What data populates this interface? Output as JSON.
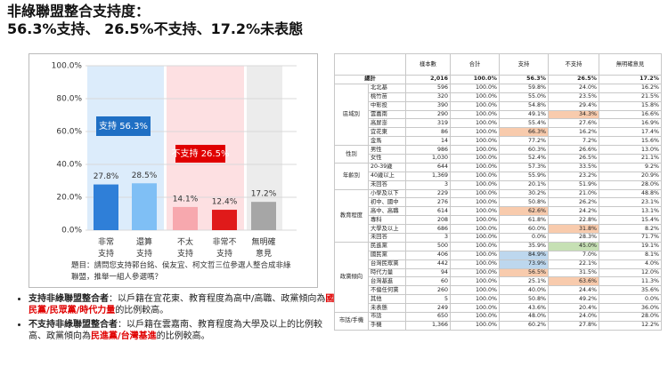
{
  "header": {
    "title": "非綠聯盟整合支持度：",
    "subtitle": "56.3%支持、 26.5%不支持、17.2%未表態"
  },
  "chart_data": {
    "type": "bar",
    "categories": [
      "非常支持",
      "還算支持",
      "不太支持",
      "非常不支持",
      "無明確意見"
    ],
    "values": [
      27.8,
      28.5,
      14.1,
      12.4,
      17.2
    ],
    "value_labels": [
      "27.8%",
      "28.5%",
      "14.1%",
      "12.4%",
      "17.2%"
    ],
    "colors": [
      "#2f7fd8",
      "#7fbff5",
      "#f7a8ae",
      "#e01a1a",
      "#a6a6a6"
    ],
    "ylim": [
      0,
      100
    ],
    "yticks": [
      {
        "value": 0,
        "label": "0.0%"
      },
      {
        "value": 20,
        "label": "20.0%"
      },
      {
        "value": 40,
        "label": "40.0%"
      },
      {
        "value": 60,
        "label": "60.0%"
      },
      {
        "value": 80,
        "label": "80.0%"
      },
      {
        "value": 100,
        "label": "100.0%"
      }
    ],
    "grid": true,
    "annotations": [
      {
        "text": "支持 56.3%",
        "color": "#1f6fc4"
      },
      {
        "text": "不支持 26.5%",
        "color": "#e00000"
      }
    ],
    "note": "題目：請問您支持郭台銘、侯友宜、柯文哲三位參選人整合成非綠聯盟，推舉一組人參選嗎？"
  },
  "bullets": [
    {
      "lead": "支持非綠聯盟整合者",
      "text": "：以戶籍在宜花東、教育程度為高中/高職、政黨傾向為",
      "em": "國民黨/民眾黨/時代力量",
      "tail": "的比例較高。"
    },
    {
      "lead": "不支持非綠聯盟整合者",
      "text": "：以戶籍在雲嘉南、教育程度為大學及以上的比例較高、政黨傾向為",
      "em": "民進黨/台灣基進",
      "tail": "的比例較高。"
    }
  ],
  "table": {
    "headers": [
      "樣本數",
      "合計",
      "支持",
      "不支持",
      "無明確意見"
    ],
    "total": {
      "label": "總計",
      "cells": [
        "2,016",
        "100.0%",
        "56.3%",
        "26.5%",
        "17.2%"
      ]
    },
    "groups": [
      {
        "name": "區域別",
        "rows": [
          {
            "label": "北北基",
            "cells": [
              "596",
              "100.0%",
              "59.8%",
              "24.0%",
              "16.2%"
            ]
          },
          {
            "label": "桃竹苗",
            "cells": [
              "320",
              "100.0%",
              "55.0%",
              "23.5%",
              "21.5%"
            ]
          },
          {
            "label": "中彰投",
            "cells": [
              "390",
              "100.0%",
              "54.8%",
              "29.4%",
              "15.8%"
            ]
          },
          {
            "label": "雲嘉南",
            "cells": [
              "290",
              "100.0%",
              "49.1%",
              "34.3%",
              "16.6%"
            ],
            "highlight": {
              "col": 3,
              "color": "#f8cbad"
            }
          },
          {
            "label": "高屏澎",
            "cells": [
              "319",
              "100.0%",
              "55.4%",
              "27.6%",
              "16.9%"
            ]
          },
          {
            "label": "宜花東",
            "cells": [
              "86",
              "100.0%",
              "66.3%",
              "16.2%",
              "17.4%"
            ],
            "highlight": {
              "col": 2,
              "color": "#f8cbad"
            }
          },
          {
            "label": "金馬",
            "cells": [
              "14",
              "100.0%",
              "77.2%",
              "7.2%",
              "15.6%"
            ]
          }
        ]
      },
      {
        "name": "性別",
        "rows": [
          {
            "label": "男性",
            "cells": [
              "986",
              "100.0%",
              "60.3%",
              "26.6%",
              "13.0%"
            ]
          },
          {
            "label": "女性",
            "cells": [
              "1,030",
              "100.0%",
              "52.4%",
              "26.5%",
              "21.1%"
            ]
          }
        ]
      },
      {
        "name": "年齡別",
        "rows": [
          {
            "label": "20-39歲",
            "cells": [
              "644",
              "100.0%",
              "57.3%",
              "33.5%",
              "9.2%"
            ]
          },
          {
            "label": "40歲以上",
            "cells": [
              "1,369",
              "100.0%",
              "55.9%",
              "23.2%",
              "20.9%"
            ]
          },
          {
            "label": "未回答",
            "cells": [
              "3",
              "100.0%",
              "20.1%",
              "51.9%",
              "28.0%"
            ]
          }
        ]
      },
      {
        "name": "教育程度",
        "rows": [
          {
            "label": "小學及以下",
            "cells": [
              "229",
              "100.0%",
              "30.2%",
              "21.0%",
              "48.8%"
            ]
          },
          {
            "label": "初中、國中",
            "cells": [
              "276",
              "100.0%",
              "50.8%",
              "26.2%",
              "23.1%"
            ]
          },
          {
            "label": "高中、高職",
            "cells": [
              "614",
              "100.0%",
              "62.6%",
              "24.2%",
              "13.1%"
            ],
            "highlight": {
              "col": 2,
              "color": "#f8cbad"
            }
          },
          {
            "label": "專科",
            "cells": [
              "208",
              "100.0%",
              "61.8%",
              "22.8%",
              "15.4%"
            ]
          },
          {
            "label": "大學及以上",
            "cells": [
              "686",
              "100.0%",
              "60.0%",
              "31.8%",
              "8.2%"
            ],
            "highlight": {
              "col": 3,
              "color": "#f8cbad"
            }
          },
          {
            "label": "未回答",
            "cells": [
              "3",
              "100.0%",
              "0.0%",
              "28.3%",
              "71.7%"
            ]
          }
        ]
      },
      {
        "name": "政黨傾向",
        "rows": [
          {
            "label": "民進黨",
            "cells": [
              "500",
              "100.0%",
              "35.9%",
              "45.0%",
              "19.1%"
            ],
            "highlight": {
              "col": 3,
              "color": "#c6e0b4"
            }
          },
          {
            "label": "國民黨",
            "cells": [
              "406",
              "100.0%",
              "84.9%",
              "7.0%",
              "8.1%"
            ],
            "highlight": {
              "col": 2,
              "color": "#bdd7ee"
            }
          },
          {
            "label": "台灣民眾黨",
            "cells": [
              "442",
              "100.0%",
              "73.9%",
              "22.1%",
              "4.0%"
            ],
            "highlight": {
              "col": 2,
              "color": "#bdd7ee"
            }
          },
          {
            "label": "時代力量",
            "cells": [
              "94",
              "100.0%",
              "56.5%",
              "31.5%",
              "12.0%"
            ],
            "highlight": {
              "col": 2,
              "color": "#f8cbad"
            }
          },
          {
            "label": "台灣基進",
            "cells": [
              "60",
              "100.0%",
              "25.1%",
              "63.6%",
              "11.3%"
            ],
            "highlight": {
              "col": 3,
              "color": "#f8cbad"
            }
          },
          {
            "label": "不偏任何黨",
            "cells": [
              "260",
              "100.0%",
              "40.0%",
              "24.4%",
              "35.6%"
            ]
          },
          {
            "label": "其他",
            "cells": [
              "5",
              "100.0%",
              "50.8%",
              "49.2%",
              "0.0%"
            ]
          },
          {
            "label": "未表態",
            "cells": [
              "249",
              "100.0%",
              "43.6%",
              "20.4%",
              "36.0%"
            ]
          }
        ]
      },
      {
        "name": "市話/手機",
        "rows": [
          {
            "label": "市話",
            "cells": [
              "650",
              "100.0%",
              "48.0%",
              "24.0%",
              "28.0%"
            ]
          },
          {
            "label": "手機",
            "cells": [
              "1,366",
              "100.0%",
              "60.2%",
              "27.8%",
              "12.2%"
            ]
          }
        ]
      }
    ]
  }
}
